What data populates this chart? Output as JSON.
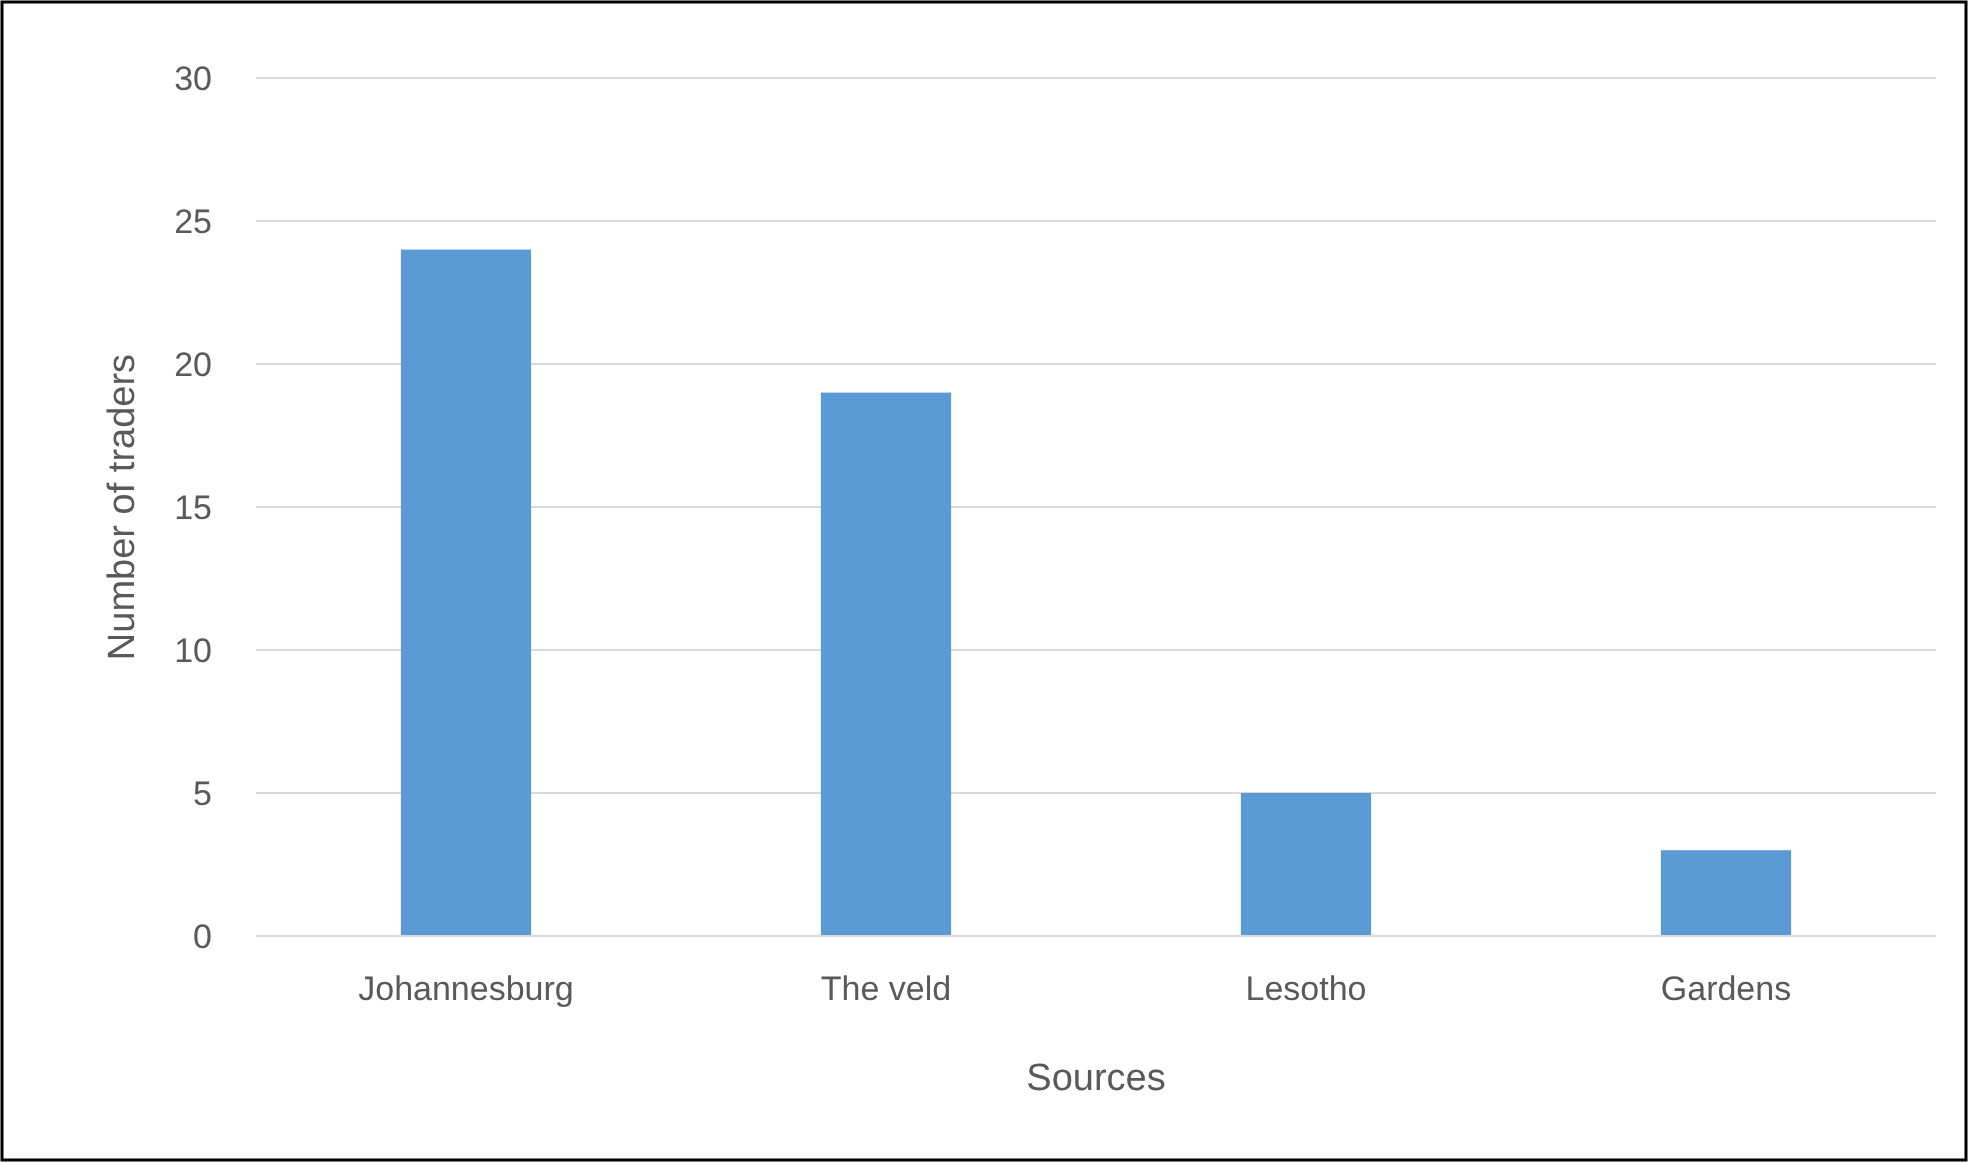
{
  "chart_data": {
    "type": "bar",
    "categories": [
      "Johannesburg",
      "The veld",
      "Lesotho",
      "Gardens"
    ],
    "values": [
      24,
      19,
      5,
      3
    ],
    "color": "#5b9bd5",
    "xlabel": "Sources",
    "ylabel": "Number of traders",
    "ylim": [
      0,
      30
    ],
    "yticks": [
      0,
      5,
      10,
      15,
      20,
      25,
      30
    ],
    "grid": "y"
  }
}
